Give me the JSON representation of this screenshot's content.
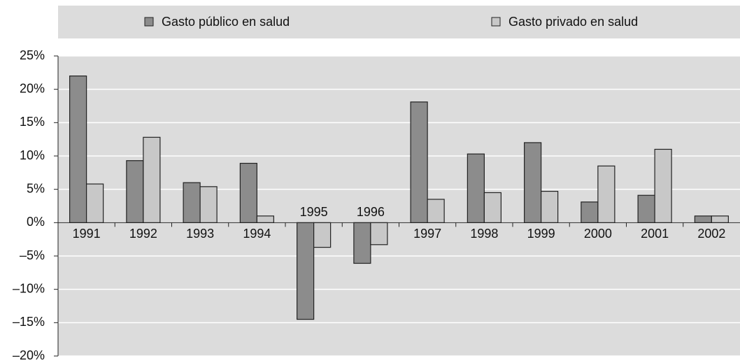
{
  "chart_data": {
    "type": "bar",
    "categories": [
      "1991",
      "1992",
      "1993",
      "1994",
      "1995",
      "1996",
      "1997",
      "1998",
      "1999",
      "2000",
      "2001",
      "2002"
    ],
    "series": [
      {
        "name": "Gasto público en salud",
        "color": "#8c8c8c",
        "values": [
          22,
          9.3,
          6,
          8.9,
          -14.5,
          -6.1,
          18.1,
          10.3,
          12,
          3.1,
          4.1,
          1
        ]
      },
      {
        "name": "Gasto privado en salud",
        "color": "#c8c8c8",
        "values": [
          5.8,
          12.8,
          5.4,
          1,
          -3.7,
          -3.3,
          3.5,
          4.5,
          4.7,
          8.5,
          11,
          1
        ]
      }
    ],
    "ylim": [
      -20,
      25
    ],
    "yticks": [
      {
        "value": -20,
        "label": "–20%"
      },
      {
        "value": -15,
        "label": "–15%"
      },
      {
        "value": -10,
        "label": "–10%"
      },
      {
        "value": -5,
        "label": "–5%"
      },
      {
        "value": 0,
        "label": "0%"
      },
      {
        "value": 5,
        "label": "5%"
      },
      {
        "value": 10,
        "label": "10%"
      },
      {
        "value": 15,
        "label": "15%"
      },
      {
        "value": 20,
        "label": "20%"
      },
      {
        "value": 25,
        "label": "25%"
      }
    ],
    "grid": true,
    "legend": "top"
  }
}
